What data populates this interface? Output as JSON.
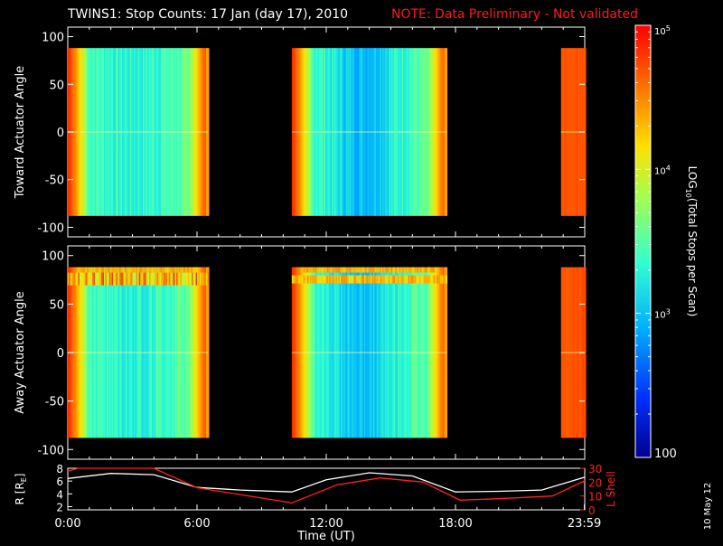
{
  "header": {
    "title": "TWINS1: Stop Counts: 17 Jan (day  17), 2010",
    "note": "NOTE: Data Preliminary - Not validated",
    "note_color": "#ff1a1a"
  },
  "side_label": "10 May 12",
  "chart_data": [
    {
      "type": "heatmap",
      "panel": "top",
      "ylabel": "Toward Actuator Angle",
      "x_range_hours": [
        0,
        24
      ],
      "ylim": [
        -110,
        110
      ],
      "data_ylim": [
        -88,
        88
      ],
      "y_ticks": [
        "100",
        "50",
        "0",
        "-50",
        "-100"
      ],
      "data_intervals_hours": [
        [
          0,
          6.5
        ],
        [
          10.4,
          17.6
        ],
        [
          22.9,
          24
        ]
      ],
      "description_levels": {
        "edges_log10": 4.8,
        "interior_log10": 3.4,
        "center_trough_log10": 2.9
      }
    },
    {
      "type": "heatmap",
      "panel": "middle",
      "ylabel": "Away Actuator Angle",
      "x_range_hours": [
        0,
        24
      ],
      "ylim": [
        -110,
        110
      ],
      "data_ylim": [
        -88,
        88
      ],
      "y_ticks": [
        "100",
        "50",
        "0",
        "-50",
        "-100"
      ],
      "data_intervals_hours": [
        [
          0,
          6.5
        ],
        [
          10.4,
          17.6
        ],
        [
          22.9,
          24
        ]
      ],
      "band_angle_deg": 75
    },
    {
      "type": "line",
      "panel": "bottom",
      "ylabel_left": "R [R",
      "ylabel_left_sub": "E",
      "ylabel_left_end": "]",
      "ylabel_right": "L Shell",
      "y_ticks_left": [
        "8",
        "6",
        "4",
        "2"
      ],
      "y_ticks_right": [
        "30",
        "20",
        "10",
        "0"
      ],
      "ylim_left": [
        1.5,
        8
      ],
      "ylim_right": [
        0,
        30
      ],
      "x_ticks": [
        "0:00",
        "6:00",
        "12:00",
        "18:00",
        "23:59"
      ],
      "xlabel": "Time (UT)",
      "series": [
        {
          "name": "R",
          "color": "#ffffff",
          "x": [
            0,
            2,
            4,
            6,
            8,
            10.4,
            12,
            14,
            16,
            18,
            20,
            22,
            24
          ],
          "y": [
            6.4,
            7.2,
            7.0,
            5.0,
            4.6,
            4.3,
            6.2,
            7.3,
            6.8,
            4.3,
            4.4,
            4.6,
            6.6
          ]
        },
        {
          "name": "L Shell",
          "color": "#ff2020",
          "x": [
            0,
            0.5,
            4.0,
            6.0,
            8.0,
            10.4,
            12.5,
            14.5,
            16.5,
            18.2,
            20,
            22.5,
            24
          ],
          "y": [
            28,
            30,
            30,
            16,
            11,
            5,
            18,
            23,
            20,
            7,
            8,
            10,
            21
          ]
        }
      ]
    },
    {
      "type": "colorbar",
      "label_pre": "LOG",
      "label_sub": "10",
      "label_post": "(Total Stops per Scan)",
      "ticks": [
        {
          "text_base": "10",
          "text_exp": "5",
          "log": 5
        },
        {
          "text_base": "10",
          "text_exp": "4",
          "log": 4
        },
        {
          "text_base": "10",
          "text_exp": "3",
          "log": 3
        },
        {
          "text": "100",
          "log": 2
        }
      ],
      "range_log": [
        2,
        5
      ],
      "colors": [
        "#00008f",
        "#0040ff",
        "#00c0ff",
        "#40ffc0",
        "#c0ff40",
        "#ffd000",
        "#ff6000",
        "#ff0000"
      ]
    }
  ]
}
